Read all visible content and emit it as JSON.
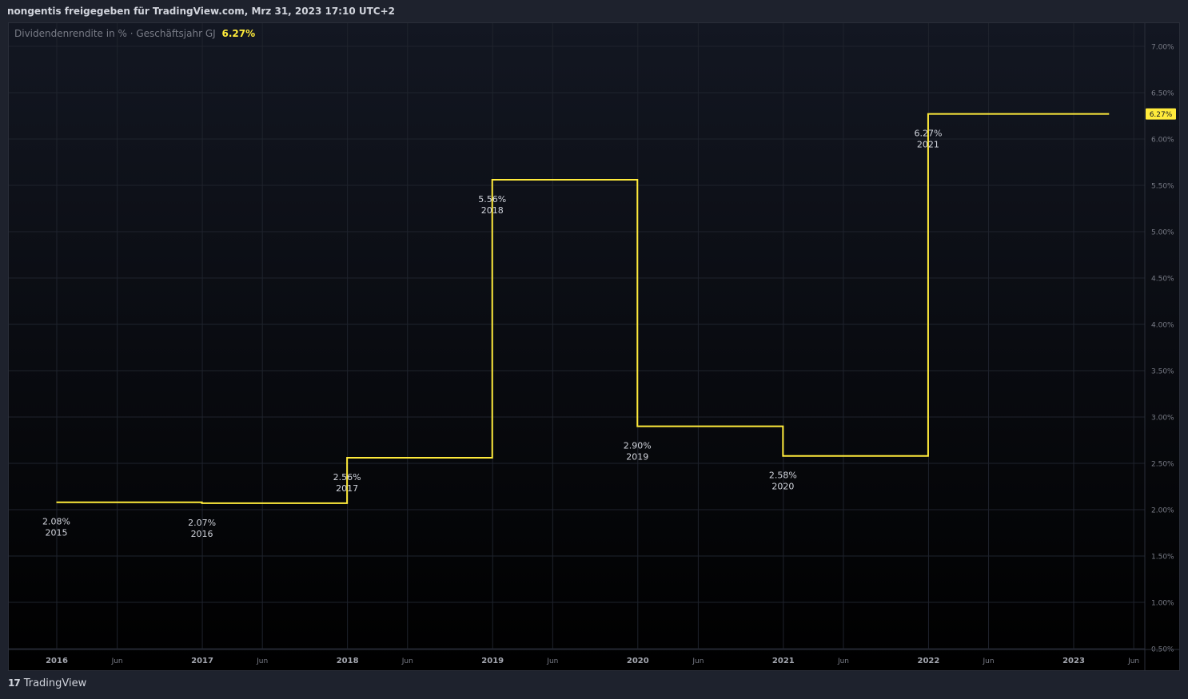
{
  "header": {
    "title": "nongentis freigegeben für TradingView.com, Mrz 31, 2023 17:10 UTC+2"
  },
  "legend": {
    "name": "Dividendenrendite in % · Geschäftsjahr GJ",
    "value": "6.27%"
  },
  "footer": {
    "brand": "TradingView"
  },
  "colors": {
    "line": "#ffeb3b",
    "grid": "#1f232d",
    "text": "#787b86",
    "label": "#d1d4dc"
  },
  "chart_data": {
    "type": "line",
    "step": true,
    "ylim": [
      0.5,
      7.0
    ],
    "y_ticks": [
      "0.50%",
      "1.00%",
      "1.50%",
      "2.00%",
      "2.50%",
      "3.00%",
      "3.50%",
      "4.00%",
      "4.50%",
      "5.00%",
      "5.50%",
      "6.00%",
      "6.50%",
      "7.00%"
    ],
    "y_tick_values": [
      0.5,
      1.0,
      1.5,
      2.0,
      2.5,
      3.0,
      3.5,
      4.0,
      4.5,
      5.0,
      5.5,
      6.0,
      6.5,
      7.0
    ],
    "x_ticks": [
      {
        "label": "2016",
        "date": "2016-01-01"
      },
      {
        "label": "Jun",
        "date": "2016-06-01"
      },
      {
        "label": "2017",
        "date": "2017-01-01"
      },
      {
        "label": "Jun",
        "date": "2017-06-01"
      },
      {
        "label": "2018",
        "date": "2018-01-01"
      },
      {
        "label": "Jun",
        "date": "2018-06-01"
      },
      {
        "label": "2019",
        "date": "2019-01-01"
      },
      {
        "label": "Jun",
        "date": "2019-06-01"
      },
      {
        "label": "2020",
        "date": "2020-01-01"
      },
      {
        "label": "Jun",
        "date": "2020-06-01"
      },
      {
        "label": "2021",
        "date": "2021-01-01"
      },
      {
        "label": "Jun",
        "date": "2021-06-01"
      },
      {
        "label": "2022",
        "date": "2022-01-01"
      },
      {
        "label": "Jun",
        "date": "2022-06-01"
      },
      {
        "label": "2023",
        "date": "2023-01-01"
      },
      {
        "label": "Jun",
        "date": "2023-06-01"
      }
    ],
    "points": [
      {
        "year": "2015",
        "date": "2015-12-31",
        "value": 2.08,
        "label": "2.08%"
      },
      {
        "year": "2016",
        "date": "2016-12-31",
        "value": 2.07,
        "label": "2.07%"
      },
      {
        "year": "2017",
        "date": "2017-12-31",
        "value": 2.56,
        "label": "2.56%"
      },
      {
        "year": "2018",
        "date": "2018-12-31",
        "value": 5.56,
        "label": "5.56%"
      },
      {
        "year": "2019",
        "date": "2019-12-31",
        "value": 2.9,
        "label": "2.90%"
      },
      {
        "year": "2020",
        "date": "2020-12-31",
        "value": 2.58,
        "label": "2.58%"
      },
      {
        "year": "2021",
        "date": "2021-12-31",
        "value": 6.27,
        "label": "6.27%"
      }
    ],
    "series_end_date": "2023-03-31",
    "last_value_label": "6.27%"
  }
}
